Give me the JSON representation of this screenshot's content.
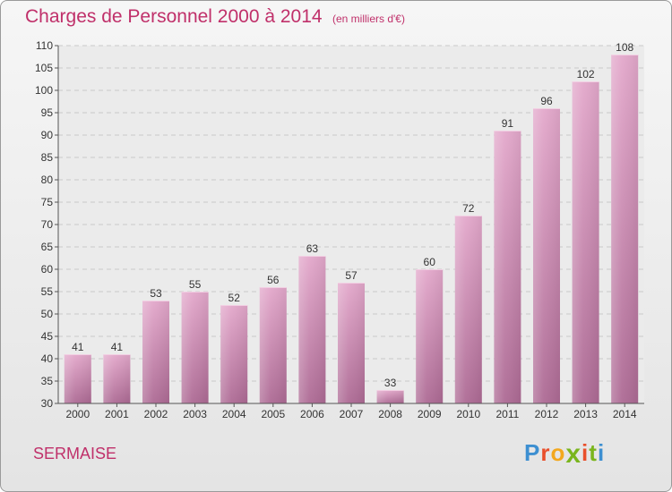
{
  "header": {
    "title": "Charges de Personnel 2000 à 2014",
    "subtitle": "(en milliers d'€)"
  },
  "footer": {
    "commune": "SERMAISE",
    "logo_letters": [
      "P",
      "r",
      "o",
      "x",
      "i",
      "t",
      "i"
    ],
    "logo_colors": [
      "#3d8fd1",
      "#e94f2b",
      "#f3a81e",
      "#7ab51d",
      "#e94f2b",
      "#7ab51d",
      "#3d8fd1"
    ]
  },
  "chart_data": {
    "type": "bar",
    "title": "Charges de Personnel 2000 à 2014",
    "subtitle": "(en milliers d'€)",
    "categories": [
      "2000",
      "2001",
      "2002",
      "2003",
      "2004",
      "2005",
      "2006",
      "2007",
      "2008",
      "2009",
      "2010",
      "2011",
      "2012",
      "2013",
      "2014"
    ],
    "values": [
      41,
      41,
      53,
      55,
      52,
      56,
      63,
      57,
      33,
      60,
      72,
      91,
      96,
      102,
      108
    ],
    "ylim": [
      30,
      110
    ],
    "yticks": [
      30,
      35,
      40,
      45,
      50,
      55,
      60,
      65,
      70,
      75,
      80,
      85,
      90,
      95,
      100,
      105,
      110
    ],
    "grid": true,
    "bar_color": "#d28ab2",
    "text_color": "#c0306a"
  }
}
